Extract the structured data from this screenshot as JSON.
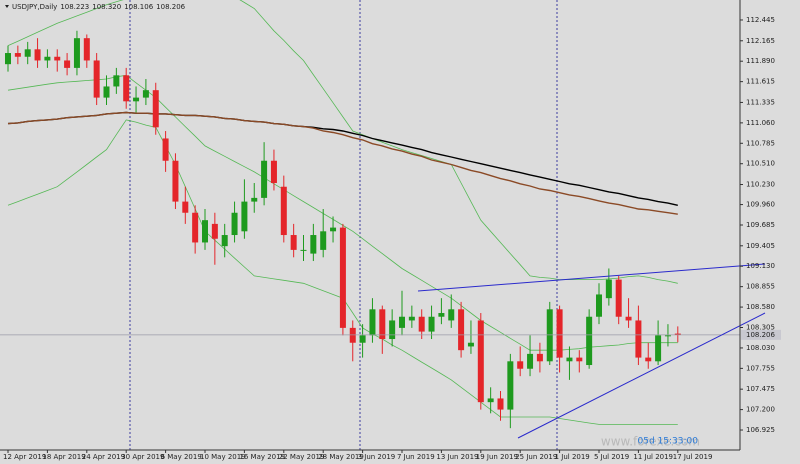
{
  "chart_data": {
    "type": "candlestick",
    "title": "USDJPY,Daily",
    "ohlc_labels": [
      "108.223",
      "108.320",
      "108.106",
      "108.206"
    ],
    "countdown": "05d 15:33:00",
    "watermark": "www.forexe.com",
    "up_color": "#1e9a1e",
    "down_color": "#e4252a",
    "categories": [
      "12 Apr 2019",
      null,
      null,
      null,
      "18 Apr 2019",
      null,
      null,
      null,
      "24 Apr 2019",
      null,
      null,
      null,
      "30 Apr 2019",
      null,
      null,
      null,
      "6 May 2019",
      null,
      null,
      null,
      "10 May 2019",
      null,
      null,
      null,
      "16 May 2019",
      null,
      null,
      null,
      "22 May 2019",
      null,
      null,
      null,
      "28 May 2019",
      null,
      null,
      null,
      "3 Jun 2019",
      null,
      null,
      null,
      "7 Jun 2019",
      null,
      null,
      null,
      "13 Jun 2019",
      null,
      null,
      null,
      "19 Jun 2019",
      null,
      null,
      null,
      "25 Jun 2019",
      null,
      null,
      null,
      "1 Jul 2019",
      null,
      null,
      null,
      "5 Jul 2019",
      null,
      null,
      null,
      "11 Jul 2019",
      null,
      null,
      null,
      "17 Jul 2019"
    ],
    "open": [
      111.85,
      112.0,
      111.95,
      112.05,
      111.9,
      111.95,
      111.9,
      111.8,
      112.2,
      111.9,
      111.4,
      111.55,
      111.7,
      111.35,
      111.4,
      111.5,
      110.85,
      110.55,
      110.0,
      109.85,
      109.45,
      109.7,
      109.4,
      109.55,
      109.6,
      110.0,
      110.05,
      110.55,
      110.2,
      109.55,
      109.35,
      109.3,
      109.35,
      109.6,
      109.65,
      108.3,
      108.1,
      108.2,
      108.55,
      108.15,
      108.3,
      108.4,
      108.45,
      108.25,
      108.45,
      108.4,
      108.55,
      108.05,
      108.4,
      107.3,
      107.35,
      107.2,
      107.85,
      107.75,
      107.95,
      107.85,
      108.55,
      107.85,
      107.9,
      107.8,
      108.45,
      108.7,
      108.95,
      108.45,
      108.4,
      107.9,
      107.85,
      108.2,
      108.223
    ],
    "high": [
      112.1,
      112.1,
      112.15,
      112.2,
      112.05,
      112.05,
      112.0,
      112.3,
      112.25,
      112.0,
      111.7,
      111.8,
      111.8,
      111.55,
      111.65,
      111.6,
      110.95,
      110.65,
      110.2,
      109.95,
      109.9,
      109.85,
      109.7,
      110.0,
      110.3,
      110.25,
      110.8,
      110.7,
      110.35,
      109.7,
      109.55,
      109.7,
      109.9,
      109.8,
      109.7,
      108.4,
      108.35,
      108.7,
      108.6,
      108.55,
      108.8,
      108.6,
      108.55,
      108.6,
      108.7,
      108.75,
      108.65,
      108.4,
      108.5,
      107.5,
      107.45,
      107.95,
      108.05,
      108.2,
      108.1,
      108.65,
      108.6,
      108.05,
      108.0,
      108.55,
      108.9,
      109.1,
      109.0,
      108.7,
      108.6,
      108.1,
      108.4,
      108.35,
      108.32
    ],
    "low": [
      111.75,
      111.85,
      111.85,
      111.8,
      111.8,
      111.75,
      111.7,
      111.7,
      111.8,
      111.3,
      111.3,
      111.45,
      111.25,
      111.2,
      111.3,
      110.9,
      110.4,
      109.9,
      109.7,
      109.3,
      109.35,
      109.15,
      109.25,
      109.45,
      109.5,
      109.85,
      109.95,
      110.15,
      109.45,
      109.25,
      109.2,
      109.2,
      109.25,
      109.45,
      108.2,
      107.85,
      107.9,
      108.1,
      107.95,
      108.05,
      108.2,
      108.3,
      108.15,
      108.15,
      108.35,
      108.3,
      107.9,
      107.95,
      107.2,
      107.15,
      107.05,
      106.95,
      107.65,
      107.65,
      107.7,
      107.8,
      107.7,
      107.6,
      107.7,
      107.75,
      108.35,
      108.6,
      108.35,
      108.3,
      107.8,
      107.75,
      107.8,
      108.05,
      108.106
    ],
    "close": [
      112.0,
      111.95,
      112.05,
      111.9,
      111.95,
      111.9,
      111.8,
      112.2,
      111.9,
      111.4,
      111.55,
      111.7,
      111.35,
      111.4,
      111.5,
      111.0,
      110.55,
      110.0,
      109.85,
      109.45,
      109.75,
      109.5,
      109.55,
      109.85,
      110.0,
      110.05,
      110.55,
      110.25,
      109.55,
      109.35,
      109.35,
      109.55,
      109.6,
      109.65,
      108.3,
      108.1,
      108.2,
      108.55,
      108.15,
      108.4,
      108.45,
      108.45,
      108.25,
      108.45,
      108.5,
      108.55,
      108.0,
      108.1,
      107.3,
      107.35,
      107.2,
      107.85,
      107.75,
      107.95,
      107.85,
      108.55,
      107.9,
      107.9,
      107.85,
      108.45,
      108.75,
      108.95,
      108.45,
      108.4,
      107.9,
      107.85,
      108.2,
      108.2,
      108.206
    ],
    "indicators": [
      {
        "color": "#55b855",
        "values": [
          112.1,
          112.16,
          112.22,
          112.28,
          112.34,
          112.4,
          112.45,
          112.5,
          112.55,
          112.6,
          112.65,
          112.69,
          112.73,
          112.77,
          112.81,
          112.85,
          112.88,
          112.91,
          112.94,
          112.97,
          113.0,
          112.92,
          112.84,
          112.76,
          112.68,
          112.6,
          112.45,
          112.3,
          112.17,
          112.03,
          111.9,
          111.71,
          111.52,
          111.33,
          111.14,
          110.95,
          110.9,
          110.85,
          110.8,
          110.75,
          110.7,
          110.66,
          110.62,
          110.58,
          110.54,
          110.5,
          110.25,
          110.0,
          109.75,
          109.6,
          109.45,
          109.3,
          109.15,
          109.0,
          108.98,
          108.97,
          108.95,
          108.95,
          108.95,
          108.95,
          108.95,
          108.96,
          108.97,
          108.99,
          109.0,
          108.98,
          108.95,
          108.93,
          108.9
        ]
      },
      {
        "color": "#55b855",
        "values": [
          111.5,
          111.52,
          111.54,
          111.56,
          111.58,
          111.6,
          111.61,
          111.62,
          111.63,
          111.64,
          111.65,
          111.68,
          111.7,
          111.6,
          111.5,
          111.4,
          111.27,
          111.14,
          111.01,
          110.88,
          110.75,
          110.68,
          110.61,
          110.54,
          110.47,
          110.4,
          110.32,
          110.24,
          110.16,
          110.08,
          110.0,
          109.92,
          109.84,
          109.76,
          109.68,
          109.6,
          109.5,
          109.4,
          109.3,
          109.2,
          109.1,
          109.02,
          108.94,
          108.86,
          108.78,
          108.7,
          108.6,
          108.5,
          108.4,
          108.32,
          108.24,
          108.16,
          108.08,
          108.0,
          108.0,
          108.0,
          108.0,
          108.01,
          108.02,
          108.04,
          108.05,
          108.06,
          108.07,
          108.09,
          108.1,
          108.1,
          108.1,
          108.1,
          108.1
        ]
      },
      {
        "color": "#55b855",
        "values": [
          109.95,
          110.0,
          110.05,
          110.1,
          110.15,
          110.2,
          110.3,
          110.4,
          110.5,
          110.6,
          110.7,
          110.9,
          111.1,
          111.07,
          111.03,
          111.0,
          110.75,
          110.5,
          110.2,
          109.9,
          109.6,
          109.48,
          109.36,
          109.24,
          109.12,
          109.0,
          108.98,
          108.96,
          108.94,
          108.92,
          108.9,
          108.85,
          108.8,
          108.75,
          108.7,
          108.5,
          108.3,
          108.22,
          108.15,
          108.07,
          108.0,
          107.92,
          107.84,
          107.76,
          107.68,
          107.6,
          107.5,
          107.4,
          107.3,
          107.2,
          107.1,
          107.1,
          107.1,
          107.1,
          107.1,
          107.1,
          107.08,
          107.06,
          107.04,
          107.02,
          107.0,
          107.0,
          107.0,
          107.0,
          107.0,
          107.0,
          107.0,
          107.0,
          107.0
        ]
      },
      {
        "color": "#000000",
        "values": [
          111.05,
          111.06,
          111.08,
          111.09,
          111.1,
          111.11,
          111.13,
          111.14,
          111.15,
          111.16,
          111.18,
          111.19,
          111.2,
          111.19,
          111.19,
          111.18,
          111.18,
          111.17,
          111.16,
          111.16,
          111.15,
          111.14,
          111.12,
          111.11,
          111.09,
          111.08,
          111.07,
          111.05,
          111.04,
          111.02,
          111.01,
          111.0,
          110.98,
          110.97,
          110.95,
          110.92,
          110.89,
          110.85,
          110.82,
          110.79,
          110.76,
          110.73,
          110.7,
          110.66,
          110.63,
          110.6,
          110.57,
          110.54,
          110.51,
          110.48,
          110.45,
          110.42,
          110.39,
          110.36,
          110.33,
          110.3,
          110.27,
          110.24,
          110.22,
          110.19,
          110.16,
          110.13,
          110.11,
          110.08,
          110.05,
          110.03,
          110.0,
          109.98,
          109.95
        ]
      },
      {
        "color": "#8b4a26",
        "values": [
          111.05,
          111.06,
          111.08,
          111.09,
          111.1,
          111.11,
          111.13,
          111.14,
          111.15,
          111.16,
          111.18,
          111.19,
          111.2,
          111.19,
          111.19,
          111.18,
          111.18,
          111.17,
          111.16,
          111.16,
          111.15,
          111.14,
          111.12,
          111.11,
          111.09,
          111.08,
          111.07,
          111.05,
          111.04,
          111.02,
          111.01,
          110.99,
          110.95,
          110.93,
          110.9,
          110.86,
          110.83,
          110.78,
          110.75,
          110.71,
          110.68,
          110.64,
          110.61,
          110.56,
          110.53,
          110.5,
          110.46,
          110.42,
          110.39,
          110.35,
          110.31,
          110.28,
          110.24,
          110.21,
          110.17,
          110.15,
          110.12,
          110.09,
          110.07,
          110.04,
          110.01,
          109.98,
          109.96,
          109.93,
          109.9,
          109.89,
          109.87,
          109.85,
          109.83
        ]
      }
    ],
    "ylim": [
      106.656,
      112.714
    ],
    "yticks": [
      112.445,
      112.165,
      {
        "value": 111.89,
        "label": "111.890"
      },
      111.615,
      111.335,
      {
        "value": 111.06,
        "label": "111.060"
      },
      110.785,
      {
        "value": 110.51,
        "label": "110.510"
      },
      {
        "value": 110.23,
        "label": "110.230"
      },
      {
        "value": 109.96,
        "label": "109.960"
      },
      109.685,
      109.405,
      {
        "value": 109.13,
        "label": "109.130"
      },
      108.855,
      {
        "value": 108.58,
        "label": "108.580"
      },
      108.305,
      {
        "value": 108.03,
        "label": "108.030"
      },
      107.755,
      107.475,
      {
        "value": 107.2,
        "label": "107.200"
      },
      106.925
    ]
  }
}
